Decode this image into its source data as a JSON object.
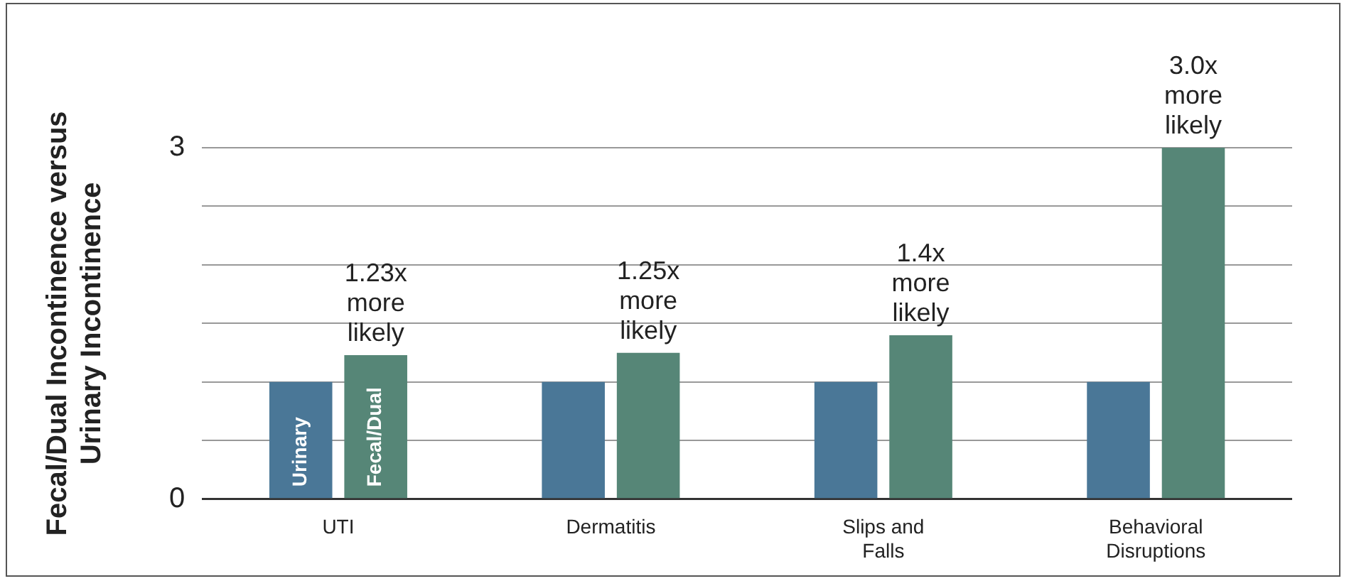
{
  "chart_data": {
    "type": "bar",
    "ylabel": "Fecal/Dual Incontinence versus Urinary Incontinence",
    "categories": [
      "UTI",
      "Dermatitis",
      "Slips and Falls",
      "Behavioral Disruptions"
    ],
    "series": [
      {
        "name": "Urinary",
        "color": "#4a7797",
        "values": [
          1,
          1,
          1,
          1
        ]
      },
      {
        "name": "Fecal/Dual",
        "color": "#568677",
        "values": [
          1.23,
          1.25,
          1.4,
          3.0
        ],
        "value_labels": [
          "1.23x more likely",
          "1.25x more likely",
          "1.4x more likely",
          "3.0x more likely"
        ]
      }
    ],
    "ylim": [
      0,
      3
    ],
    "yticks": [
      0,
      {
        "value": 0.5,
        "label": null
      },
      {
        "value": 1,
        "label": null
      },
      {
        "value": 1.5,
        "label": null
      },
      {
        "value": 2,
        "label": null
      },
      {
        "value": 2.5,
        "label": null
      },
      3
    ],
    "grid": "y",
    "legend": false
  }
}
